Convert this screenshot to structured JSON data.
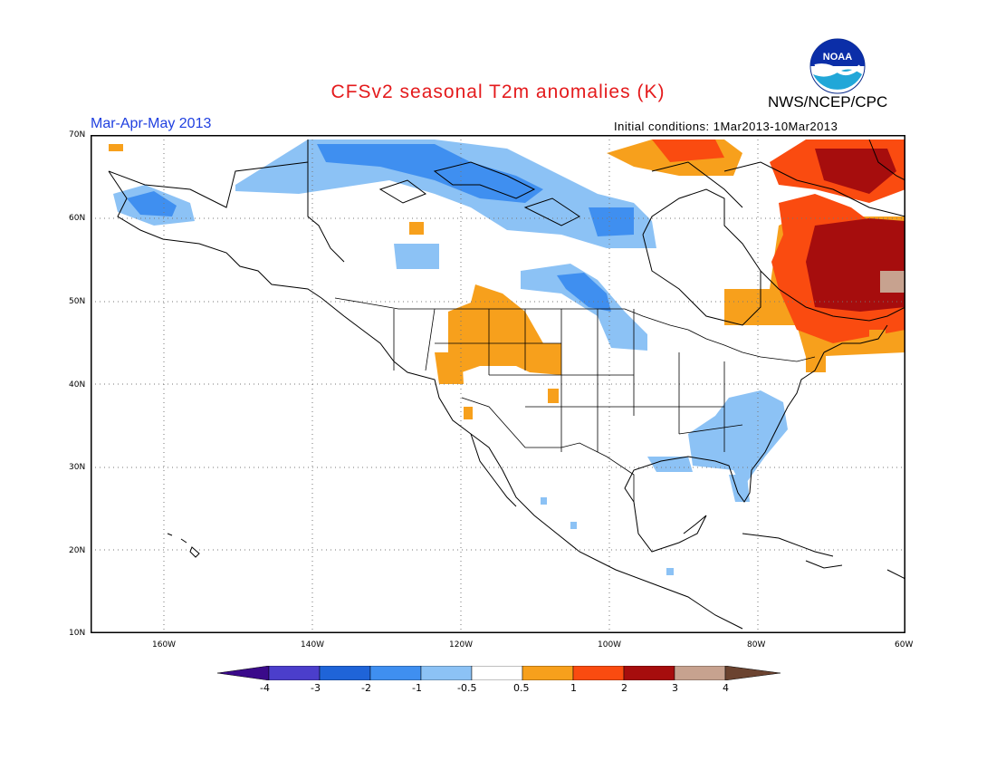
{
  "header": {
    "title": "CFSv2 seasonal T2m anomalies (K)",
    "period": "Mar-Apr-May 2013",
    "agency": "NWS/NCEP/CPC",
    "initial_conditions": "Initial conditions: 1Mar2013-10Mar2013",
    "logo_text": "NOAA"
  },
  "colors": {
    "title": "#e41a1c",
    "period": "#2040e0",
    "bins": [
      {
        "range": "< -4",
        "color": "#3a0a8a"
      },
      {
        "range": "-4 to -3",
        "color": "#4b3ecb"
      },
      {
        "range": "-3 to -2",
        "color": "#1f64d8"
      },
      {
        "range": "-2 to -1",
        "color": "#3f8ff0"
      },
      {
        "range": "-1 to -0.5",
        "color": "#8cc2f5"
      },
      {
        "range": "-0.5 to 0.5",
        "color": "#ffffff"
      },
      {
        "range": "0.5 to 1",
        "color": "#f7a01c"
      },
      {
        "range": "1 to 2",
        "color": "#fa4b10"
      },
      {
        "range": "2 to 3",
        "color": "#a60d0d"
      },
      {
        "range": "3 to 4",
        "color": "#c7a28f"
      },
      {
        "range": "> 4",
        "color": "#6b4330"
      }
    ]
  },
  "axes": {
    "lat_labels": [
      "70N",
      "60N",
      "50N",
      "40N",
      "30N",
      "20N",
      "10N"
    ],
    "lon_labels": [
      "160W",
      "140W",
      "120W",
      "100W",
      "80W",
      "60W"
    ],
    "lat_range": [
      10,
      70
    ],
    "lon_range": [
      -170,
      -60
    ]
  },
  "colorbar": {
    "labels": [
      "-4",
      "-3",
      "-2",
      "-1",
      "-0.5",
      "0.5",
      "1",
      "2",
      "3",
      "4"
    ]
  }
}
